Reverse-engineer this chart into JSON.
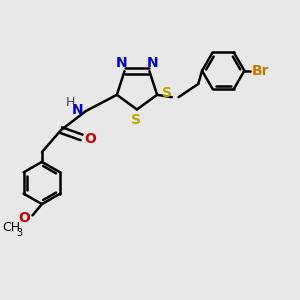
{
  "bg_color": "#e8e8e8",
  "bond_color": "#000000",
  "N_color": "#0000cc",
  "S_color": "#bbaa00",
  "O_color": "#cc0000",
  "Br_color": "#cc7700",
  "H_color": "#444444",
  "line_width": 1.8,
  "font_size": 10,
  "fig_size": [
    3.0,
    3.0
  ],
  "dpi": 100,
  "xlim": [
    0,
    10
  ],
  "ylim": [
    0,
    10
  ]
}
